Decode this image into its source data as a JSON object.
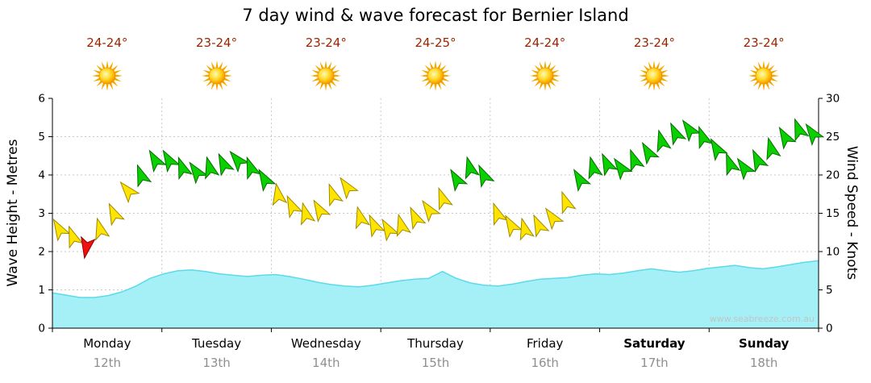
{
  "title": "7 day wind & wave forecast for Bernier Island",
  "watermark": "www.seabreeze.com.au",
  "days": [
    {
      "name": "Monday",
      "date": "12th",
      "temp": "24-24°",
      "bold": false
    },
    {
      "name": "Tuesday",
      "date": "13th",
      "temp": "23-24°",
      "bold": false
    },
    {
      "name": "Wednesday",
      "date": "14th",
      "temp": "23-24°",
      "bold": false
    },
    {
      "name": "Thursday",
      "date": "15th",
      "temp": "24-25°",
      "bold": false
    },
    {
      "name": "Friday",
      "date": "16th",
      "temp": "24-24°",
      "bold": false
    },
    {
      "name": "Saturday",
      "date": "17th",
      "temp": "23-24°",
      "bold": true
    },
    {
      "name": "Sunday",
      "date": "18th",
      "temp": "23-24°",
      "bold": true
    }
  ],
  "y_left": {
    "title": "Wave Height - Metres",
    "min": 0,
    "max": 6,
    "ticks": [
      0,
      1,
      2,
      3,
      4,
      5,
      6
    ]
  },
  "y_right": {
    "title": "Wind Speed - Knots",
    "min": 0,
    "max": 30,
    "ticks": [
      0,
      5,
      10,
      15,
      20,
      25,
      30
    ]
  },
  "palette": {
    "y": "#ffe400",
    "g": "#0ad000",
    "r": "#f01010",
    "y_stroke": "#a08a00",
    "g_stroke": "#056e00",
    "r_stroke": "#8e0000",
    "wave_fill": "#a5f0f7",
    "wave_stroke": "#5cd9ea",
    "grid": "#c9c9c9",
    "axis": "#000000",
    "temp_color": "#992600",
    "date_color": "#8f8f8f",
    "watermark_color": "#c4c4c4"
  },
  "chart_data": {
    "type": "area+wind_arrows",
    "x_categories": [
      "Monday 12th",
      "Tuesday 13th",
      "Wednesday 14th",
      "Thursday 15th",
      "Friday 16th",
      "Saturday 17th",
      "Sunday 18th"
    ],
    "points_per_day": 8,
    "wave_axis": {
      "label": "Wave Height - Metres",
      "range": [
        0,
        6
      ]
    },
    "wind_axis": {
      "label": "Wind Speed - Knots",
      "range": [
        0,
        30
      ]
    },
    "wave_height_m": [
      0.92,
      0.86,
      0.8,
      0.8,
      0.85,
      0.95,
      1.1,
      1.3,
      1.42,
      1.5,
      1.52,
      1.48,
      1.42,
      1.38,
      1.35,
      1.38,
      1.4,
      1.35,
      1.28,
      1.2,
      1.14,
      1.1,
      1.08,
      1.12,
      1.18,
      1.24,
      1.28,
      1.3,
      1.48,
      1.3,
      1.18,
      1.12,
      1.1,
      1.15,
      1.22,
      1.28,
      1.3,
      1.32,
      1.38,
      1.42,
      1.4,
      1.44,
      1.5,
      1.55,
      1.5,
      1.46,
      1.5,
      1.56,
      1.6,
      1.64,
      1.58,
      1.55,
      1.6,
      1.66,
      1.72,
      1.76
    ],
    "wind_speed_knots": [
      13,
      12,
      10.5,
      13,
      15,
      18,
      20,
      22,
      22,
      21,
      20.5,
      21,
      21.5,
      22,
      21,
      19.5,
      17.5,
      16,
      15,
      15.5,
      17.5,
      18.5,
      14.5,
      13.5,
      13,
      13.5,
      14.5,
      15.5,
      17,
      19.5,
      21,
      20,
      15,
      13.5,
      13,
      13.5,
      14.5,
      16.5,
      19.5,
      21,
      21.5,
      21,
      22,
      23,
      24.5,
      25.5,
      26,
      25,
      23.5,
      21.5,
      21,
      22,
      23.5,
      25,
      26,
      25.5
    ],
    "wind_colors": [
      "y",
      "y",
      "r",
      "y",
      "y",
      "y",
      "g",
      "g",
      "g",
      "g",
      "g",
      "g",
      "g",
      "g",
      "g",
      "g",
      "y",
      "y",
      "y",
      "y",
      "y",
      "y",
      "y",
      "y",
      "y",
      "y",
      "y",
      "y",
      "y",
      "g",
      "g",
      "g",
      "y",
      "y",
      "y",
      "y",
      "y",
      "y",
      "g",
      "g",
      "g",
      "g",
      "g",
      "g",
      "g",
      "g",
      "g",
      "g",
      "g",
      "g",
      "g",
      "g",
      "g",
      "g",
      "g",
      "g"
    ],
    "wind_dir_deg": [
      -30,
      -20,
      190,
      -15,
      -25,
      -40,
      -20,
      -30,
      -30,
      -20,
      -35,
      -15,
      -25,
      -40,
      -20,
      -30,
      -10,
      -25,
      -15,
      -30,
      -20,
      -35,
      -15,
      -25,
      -30,
      -15,
      -25,
      -35,
      -20,
      -30,
      -15,
      -25,
      -20,
      -30,
      -15,
      -25,
      -35,
      -20,
      -30,
      -15,
      -25,
      -35,
      -20,
      -30,
      -15,
      -25,
      -35,
      -20,
      -30,
      -20,
      -35,
      -25,
      -15,
      -30,
      -20,
      -35
    ]
  }
}
